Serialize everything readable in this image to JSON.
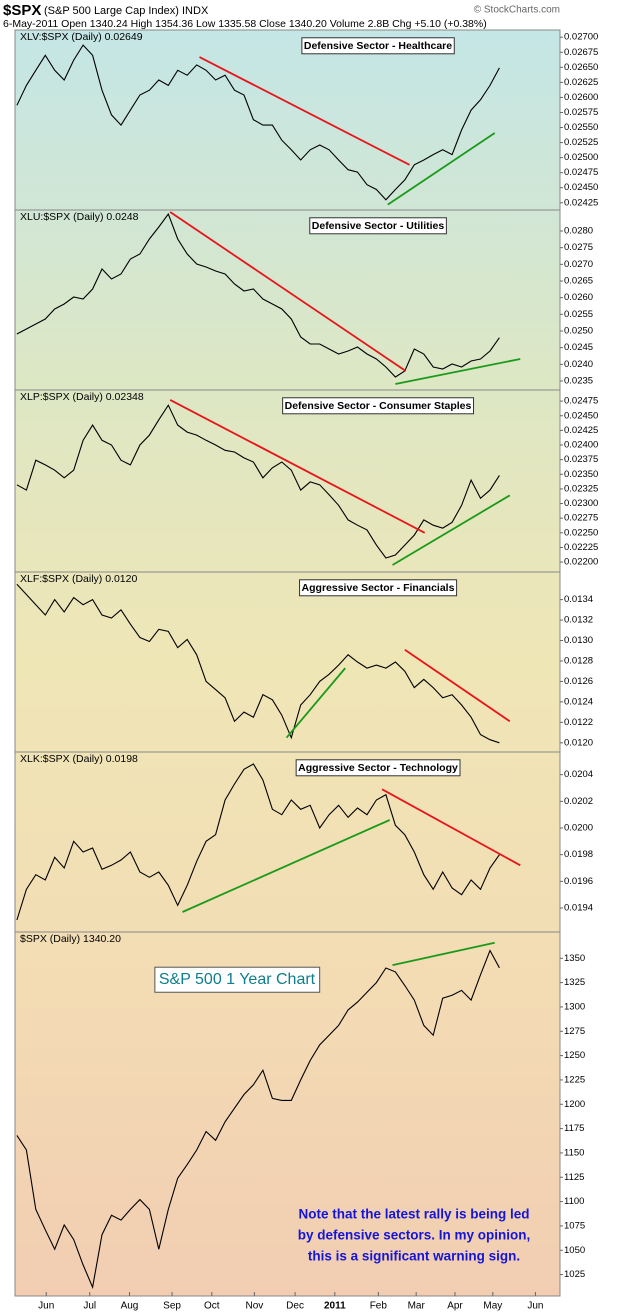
{
  "header": {
    "symbol": "$SPX",
    "name": "(S&P 500 Large Cap Index) INDX",
    "source": "© StockCharts.com",
    "quote": "6-May-2011   Open 1340.24   High 1354.36   Low 1335.58   Close 1340.20   Volume 2.8B   Chg +5.10 (+0.38%)"
  },
  "chart_data": [
    {
      "type": "line",
      "title": "XLV:$SPX (Daily) 0.02649",
      "annotation": "Defensive Sector - Healthcare",
      "color": "#000000",
      "xlim": [
        -0.2,
        57.4
      ],
      "ylim": [
        0.02413,
        0.02712
      ],
      "yticks": [
        0.02425,
        {
          "value": 0.0245,
          "label": "0.02450"
        },
        0.02475,
        {
          "value": 0.025,
          "label": "0.02500"
        },
        0.02525,
        {
          "value": 0.0255,
          "label": "0.02550"
        },
        0.02575,
        {
          "value": 0.026,
          "label": "0.02600"
        },
        0.02625,
        {
          "value": 0.0265,
          "label": "0.02650"
        },
        0.02675,
        {
          "value": 0.027,
          "label": "0.02700"
        }
      ],
      "values": [
        0.02587,
        0.0262,
        0.02645,
        0.0267,
        0.02645,
        0.02629,
        0.02662,
        0.02687,
        0.0267,
        0.02612,
        0.02571,
        0.02554,
        0.02579,
        0.02604,
        0.02612,
        0.02629,
        0.0262,
        0.02645,
        0.02637,
        0.02654,
        0.02645,
        0.02629,
        0.02637,
        0.02612,
        0.02604,
        0.02563,
        0.02554,
        0.02554,
        0.02529,
        0.02513,
        0.02496,
        0.02513,
        0.02521,
        0.02513,
        0.02496,
        0.0248,
        0.02476,
        0.02455,
        0.02447,
        0.0243,
        0.02447,
        0.02463,
        0.02488,
        0.02496,
        0.02505,
        0.02513,
        0.02505,
        0.02546,
        0.02579,
        0.02596,
        0.0262,
        0.02649
      ],
      "trendlines": [
        {
          "color": "#e8141b",
          "x": [
            19.3,
            41.5
          ],
          "y": [
            0.02667,
            0.02488
          ]
        },
        {
          "color": "#1a9a1a",
          "x": [
            39.2,
            50.5
          ],
          "y": [
            0.02422,
            0.02541
          ]
        }
      ]
    },
    {
      "type": "line",
      "title": "XLU:$SPX (Daily) 0.0248",
      "annotation": "Defensive Sector - Utilities",
      "color": "#000000",
      "xlim": [
        -0.2,
        57.4
      ],
      "ylim": [
        0.02323,
        0.02863
      ],
      "yticks": [
        {
          "value": 0.0235,
          "label": "0.0235"
        },
        {
          "value": 0.024,
          "label": "0.0240"
        },
        0.0245,
        {
          "value": 0.025,
          "label": "0.0250"
        },
        0.0255,
        {
          "value": 0.026,
          "label": "0.0260"
        },
        0.0265,
        {
          "value": 0.027,
          "label": "0.0270"
        },
        0.0275,
        {
          "value": 0.028,
          "label": "0.0280"
        }
      ],
      "values": [
        0.02491,
        0.02506,
        0.02521,
        0.02536,
        0.02566,
        0.02581,
        0.02602,
        0.02596,
        0.02626,
        0.02686,
        0.02656,
        0.02671,
        0.02716,
        0.02731,
        0.02776,
        0.02812,
        0.02851,
        0.02776,
        0.02731,
        0.02701,
        0.02692,
        0.0268,
        0.02671,
        0.02641,
        0.0262,
        0.02626,
        0.02596,
        0.02581,
        0.02566,
        0.02536,
        0.02482,
        0.02461,
        0.02461,
        0.02446,
        0.02431,
        0.0244,
        0.02452,
        0.02431,
        0.02416,
        0.02392,
        0.02362,
        0.0238,
        0.02446,
        0.02431,
        0.02392,
        0.02386,
        0.02401,
        0.02392,
        0.0241,
        0.02416,
        0.0244,
        0.0248
      ],
      "trendlines": [
        {
          "color": "#e8141b",
          "x": [
            16.2,
            41.1
          ],
          "y": [
            0.02857,
            0.0238
          ]
        },
        {
          "color": "#1a9a1a",
          "x": [
            40,
            53.2
          ],
          "y": [
            0.02341,
            0.02416
          ]
        }
      ]
    },
    {
      "type": "line",
      "title": "XLP:$SPX (Daily) 0.02348",
      "annotation": "Defensive Sector - Consumer Staples",
      "color": "#000000",
      "xlim": [
        -0.2,
        57.4
      ],
      "ylim": [
        0.02183,
        0.02494
      ],
      "yticks": [
        {
          "value": 0.022,
          "label": "0.02200"
        },
        0.02225,
        {
          "value": 0.0225,
          "label": "0.02250"
        },
        0.02275,
        {
          "value": 0.023,
          "label": "0.02300"
        },
        0.02325,
        {
          "value": 0.0235,
          "label": "0.02350"
        },
        0.02375,
        {
          "value": 0.024,
          "label": "0.02400"
        },
        0.02425,
        {
          "value": 0.0245,
          "label": "0.02450"
        },
        0.02475
      ],
      "values": [
        0.02332,
        0.02323,
        0.02374,
        0.02366,
        0.02357,
        0.02344,
        0.02357,
        0.02408,
        0.02434,
        0.02408,
        0.024,
        0.02374,
        0.02366,
        0.024,
        0.02417,
        0.02443,
        0.02468,
        0.02434,
        0.02422,
        0.02417,
        0.02408,
        0.024,
        0.02391,
        0.02388,
        0.02378,
        0.02371,
        0.02344,
        0.02361,
        0.02371,
        0.02357,
        0.02323,
        0.02337,
        0.02332,
        0.02315,
        0.02297,
        0.02272,
        0.02263,
        0.02255,
        0.02229,
        0.02207,
        0.02212,
        0.02229,
        0.02246,
        0.02272,
        0.02263,
        0.02258,
        0.02268,
        0.02297,
        0.0234,
        0.02309,
        0.02323,
        0.02348
      ],
      "trendlines": [
        {
          "color": "#e8141b",
          "x": [
            16.2,
            43.1
          ],
          "y": [
            0.02477,
            0.0225
          ]
        },
        {
          "color": "#1a9a1a",
          "x": [
            39.7,
            52.1
          ],
          "y": [
            0.02195,
            0.02314
          ]
        }
      ]
    },
    {
      "type": "line",
      "title": "XLF:$SPX (Daily) 0.0120",
      "annotation": "Aggressive Sector - Financials",
      "color": "#000000",
      "xlim": [
        -0.2,
        57.4
      ],
      "ylim": [
        0.01191,
        0.01367
      ],
      "yticks": [
        {
          "value": 0.012,
          "label": "0.0120"
        },
        0.0122,
        0.0124,
        0.0126,
        0.0128,
        {
          "value": 0.013,
          "label": "0.0130"
        },
        0.0132,
        0.0134
      ],
      "values": [
        0.01355,
        0.01345,
        0.01335,
        0.01325,
        0.0134,
        0.01328,
        0.01342,
        0.01335,
        0.0134,
        0.01325,
        0.01322,
        0.0133,
        0.01316,
        0.01303,
        0.01299,
        0.01311,
        0.01309,
        0.01293,
        0.01301,
        0.01286,
        0.0126,
        0.01252,
        0.01244,
        0.01221,
        0.0123,
        0.01225,
        0.01247,
        0.01242,
        0.01227,
        0.01205,
        0.01237,
        0.01247,
        0.0126,
        0.01267,
        0.01276,
        0.01286,
        0.01279,
        0.01273,
        0.01276,
        0.01273,
        0.01279,
        0.0127,
        0.01254,
        0.01262,
        0.01254,
        0.01244,
        0.01247,
        0.01237,
        0.01225,
        0.01208,
        0.01203,
        0.012
      ],
      "trendlines": [
        {
          "color": "#1a9a1a",
          "x": [
            28.5,
            34.7
          ],
          "y": [
            0.01205,
            0.01273
          ]
        },
        {
          "color": "#e8141b",
          "x": [
            41,
            52.1
          ],
          "y": [
            0.01291,
            0.01221
          ]
        }
      ]
    },
    {
      "type": "line",
      "title": "XLK:$SPX (Daily) 0.0198",
      "annotation": "Aggressive Sector - Technology",
      "color": "#000000",
      "xlim": [
        -0.2,
        57.4
      ],
      "ylim": [
        0.01922,
        0.02057
      ],
      "yticks": [
        0.0194,
        0.0196,
        0.0198,
        {
          "value": 0.02,
          "label": "0.0200"
        },
        0.0202,
        0.0204
      ],
      "values": [
        0.01931,
        0.01954,
        0.01965,
        0.01961,
        0.01978,
        0.0197,
        0.0199,
        0.01982,
        0.01985,
        0.01969,
        0.01972,
        0.01976,
        0.01982,
        0.01967,
        0.01963,
        0.01967,
        0.01957,
        0.01942,
        0.01957,
        0.01975,
        0.0199,
        0.01995,
        0.02021,
        0.02033,
        0.02044,
        0.02048,
        0.02036,
        0.02014,
        0.0201,
        0.02021,
        0.02014,
        0.02017,
        0.02,
        0.0201,
        0.02017,
        0.02008,
        0.02015,
        0.0201,
        0.02021,
        0.02025,
        0.02002,
        0.01995,
        0.01982,
        0.01965,
        0.01954,
        0.01967,
        0.01955,
        0.0195,
        0.01961,
        0.01954,
        0.0197,
        0.0198
      ],
      "trendlines": [
        {
          "color": "#1a9a1a",
          "x": [
            17.5,
            39.4
          ],
          "y": [
            0.01937,
            0.02006
          ]
        },
        {
          "color": "#e8141b",
          "x": [
            38.6,
            53.2
          ],
          "y": [
            0.02029,
            0.01972
          ]
        }
      ]
    },
    {
      "type": "line",
      "title": "$SPX (Daily) 1340.20",
      "callout": "S&P 500 1 Year Chart",
      "color": "#000000",
      "note": [
        "Note that the latest rally is being led",
        "by defensive sectors.  In my opinion,",
        "this is a significant warning sign."
      ],
      "xlim": [
        -0.2,
        57.4
      ],
      "ylim": [
        1003,
        1377
      ],
      "yticks": [
        1025,
        1050,
        1075,
        1100,
        1125,
        1150,
        1175,
        1200,
        1225,
        1250,
        1275,
        1300,
        1325,
        1350
      ],
      "xticks": [
        {
          "value": 3.1,
          "label": "Jun"
        },
        {
          "value": 7.7,
          "label": "Jul"
        },
        {
          "value": 11.9,
          "label": "Aug"
        },
        {
          "value": 16.4,
          "label": "Sep"
        },
        {
          "value": 20.6,
          "label": "Oct"
        },
        {
          "value": 25.1,
          "label": "Nov"
        },
        {
          "value": 29.4,
          "label": "Dec"
        },
        {
          "value": 33.6,
          "label": "2011"
        },
        {
          "value": 38.2,
          "label": "Feb"
        },
        {
          "value": 42.2,
          "label": "Mar"
        },
        {
          "value": 46.3,
          "label": "Apr"
        },
        {
          "value": 50.3,
          "label": "May"
        },
        {
          "value": 54.8,
          "label": "Jun"
        }
      ],
      "values": [
        1168,
        1153,
        1092,
        1071,
        1051,
        1076,
        1061,
        1035,
        1012,
        1066,
        1086,
        1081,
        1092,
        1102,
        1092,
        1051,
        1092,
        1124,
        1138,
        1153,
        1172,
        1163,
        1182,
        1196,
        1210,
        1220,
        1235,
        1206,
        1204,
        1204,
        1225,
        1245,
        1261,
        1271,
        1281,
        1297,
        1305,
        1315,
        1325,
        1340,
        1336,
        1322,
        1307,
        1281,
        1271,
        1309,
        1312,
        1317,
        1307,
        1333,
        1358,
        1340.2
      ],
      "trendlines": [
        {
          "color": "#1a9a1a",
          "x": [
            39.7,
            50.5
          ],
          "y": [
            1343,
            1366
          ]
        }
      ]
    }
  ]
}
